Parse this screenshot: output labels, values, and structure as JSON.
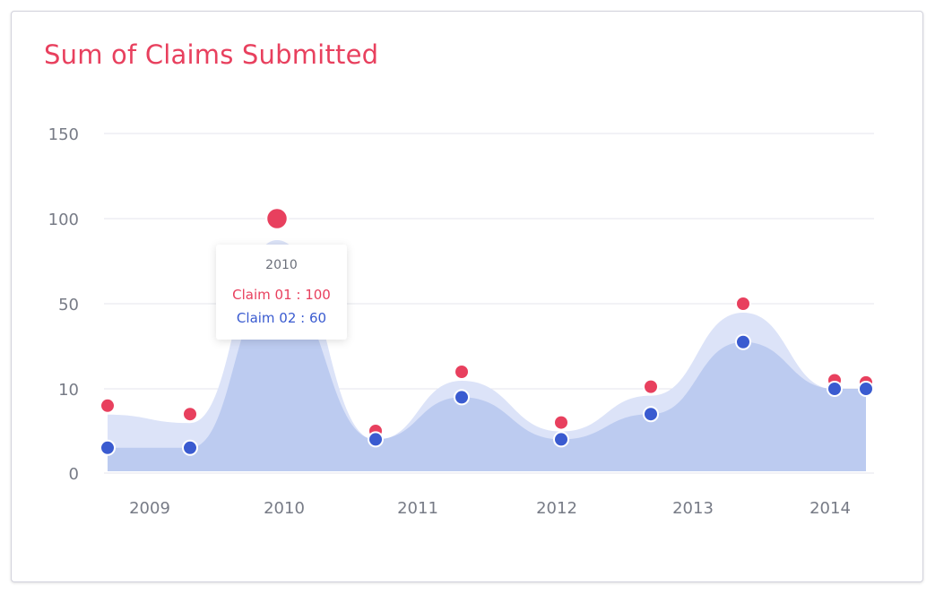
{
  "chart_data": {
    "type": "area",
    "title": "Sum of Claims Submitted",
    "y_ticks": [
      "0",
      "10",
      "50",
      "100",
      "150"
    ],
    "x_ticks": [
      "2009",
      "2010",
      "2011",
      "2012",
      "2013",
      "2014"
    ],
    "grid": true,
    "series": [
      {
        "name": "Claim 01",
        "color": "#e8405e",
        "values": [
          8,
          7,
          100,
          5,
          18,
          6,
          11,
          50,
          14,
          13
        ]
      },
      {
        "name": "Claim 02",
        "color": "#3a5bd0",
        "values": [
          3,
          3,
          60,
          4,
          9,
          4,
          7,
          32,
          10,
          10
        ]
      }
    ],
    "area_colors": {
      "claim_01": "#dce3f8",
      "claim_02": "#bccbf0"
    },
    "tooltip": {
      "title": "2010",
      "line1": "Claim 01 : 100",
      "line2": "Claim 02 : 60"
    }
  }
}
